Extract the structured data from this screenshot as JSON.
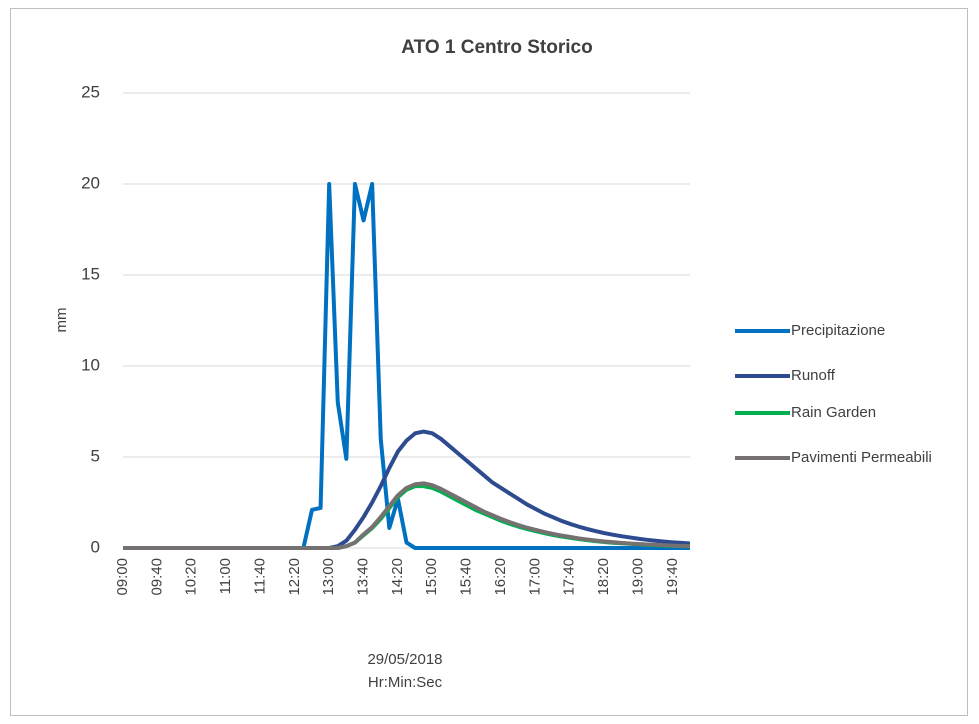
{
  "chart_data": {
    "type": "line",
    "title": "ATO 1 Centro Storico",
    "y_label": "mm",
    "x_label": [
      "29/05/2018",
      "Hr:Min:Sec"
    ],
    "categories": [
      "09:00",
      null,
      null,
      null,
      "09:40",
      null,
      null,
      null,
      "10:20",
      null,
      null,
      null,
      "11:00",
      null,
      null,
      null,
      "11:40",
      null,
      null,
      null,
      "12:20",
      null,
      null,
      null,
      "13:00",
      null,
      null,
      null,
      "13:40",
      null,
      null,
      null,
      "14:20",
      null,
      null,
      null,
      "15:00",
      null,
      null,
      null,
      "15:40",
      null,
      null,
      null,
      "16:20",
      null,
      null,
      null,
      "17:00",
      null,
      null,
      null,
      "17:40",
      null,
      null,
      null,
      "18:20",
      null,
      null,
      null,
      "19:00",
      null,
      null,
      null,
      "19:40",
      null,
      null
    ],
    "ylim": [
      0,
      25
    ],
    "yticks": [
      0,
      5,
      10,
      15,
      20,
      25
    ],
    "grid": true,
    "legend": "right",
    "series": [
      {
        "name": "Precipitazione",
        "color": "#0070c0",
        "values": [
          0,
          0,
          0,
          0,
          0,
          0,
          0,
          0,
          0,
          0,
          0,
          0,
          0,
          0,
          0,
          0,
          0,
          0,
          0,
          0,
          0,
          0,
          2.1,
          2.2,
          20,
          8,
          4.9,
          20,
          18,
          20,
          6,
          1.1,
          2.7,
          0.3,
          0,
          0,
          0,
          0,
          0,
          0,
          0,
          0,
          0,
          0,
          0,
          0,
          0,
          0,
          0,
          0,
          0,
          0,
          0,
          0,
          0,
          0,
          0,
          0,
          0,
          0,
          0,
          0,
          0,
          0,
          0,
          0,
          0
        ]
      },
      {
        "name": "Runoff",
        "color": "#2f4b8f",
        "values": [
          0,
          0,
          0,
          0,
          0,
          0,
          0,
          0,
          0,
          0,
          0,
          0,
          0,
          0,
          0,
          0,
          0,
          0,
          0,
          0,
          0,
          0,
          0,
          0,
          0,
          0.1,
          0.4,
          1.0,
          1.7,
          2.5,
          3.4,
          4.4,
          5.3,
          5.9,
          6.3,
          6.4,
          6.3,
          6.0,
          5.6,
          5.2,
          4.8,
          4.4,
          4.0,
          3.6,
          3.3,
          3.0,
          2.7,
          2.4,
          2.15,
          1.9,
          1.7,
          1.5,
          1.33,
          1.18,
          1.05,
          0.93,
          0.82,
          0.73,
          0.65,
          0.58,
          0.51,
          0.45,
          0.4,
          0.35,
          0.31,
          0.28,
          0.25
        ]
      },
      {
        "name": "Rain Garden",
        "color": "#00b050",
        "values": [
          0,
          0,
          0,
          0,
          0,
          0,
          0,
          0,
          0,
          0,
          0,
          0,
          0,
          0,
          0,
          0,
          0,
          0,
          0,
          0,
          0,
          0,
          0,
          0,
          0,
          0,
          0.1,
          0.3,
          0.7,
          1.1,
          1.6,
          2.2,
          2.8,
          3.2,
          3.4,
          3.4,
          3.3,
          3.1,
          2.85,
          2.6,
          2.35,
          2.1,
          1.9,
          1.7,
          1.5,
          1.33,
          1.18,
          1.05,
          0.93,
          0.82,
          0.72,
          0.64,
          0.56,
          0.49,
          0.43,
          0.38,
          0.33,
          0.29,
          0.26,
          0.23,
          0.2,
          0.17,
          0.15,
          0.13,
          0.12,
          0.1,
          0.09
        ]
      },
      {
        "name": "Pavimenti Permeabili",
        "color": "#767171",
        "values": [
          0,
          0,
          0,
          0,
          0,
          0,
          0,
          0,
          0,
          0,
          0,
          0,
          0,
          0,
          0,
          0,
          0,
          0,
          0,
          0,
          0,
          0,
          0,
          0,
          0,
          0,
          0.1,
          0.3,
          0.75,
          1.15,
          1.7,
          2.3,
          2.9,
          3.3,
          3.5,
          3.55,
          3.45,
          3.25,
          3.0,
          2.75,
          2.5,
          2.25,
          2.0,
          1.8,
          1.6,
          1.42,
          1.26,
          1.12,
          1.0,
          0.88,
          0.78,
          0.69,
          0.61,
          0.53,
          0.47,
          0.41,
          0.36,
          0.32,
          0.28,
          0.25,
          0.22,
          0.19,
          0.17,
          0.15,
          0.13,
          0.11,
          0.1
        ]
      }
    ]
  }
}
